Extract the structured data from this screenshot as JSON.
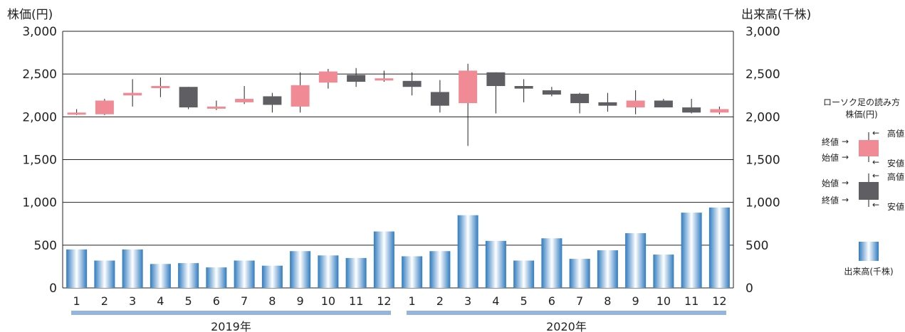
{
  "chart_data": {
    "type": "candlestick+bar",
    "left_axis_title": "株価(円)",
    "right_axis_title": "出来高(千株)",
    "y_ticks": [
      "0",
      "500",
      "1,000",
      "1,500",
      "2,000",
      "2,500",
      "3,000"
    ],
    "y_tick_values": [
      0,
      500,
      1000,
      1500,
      2000,
      2500,
      3000
    ],
    "ylim": [
      0,
      3000
    ],
    "grid": true,
    "categories": [
      "1",
      "2",
      "3",
      "4",
      "5",
      "6",
      "7",
      "8",
      "9",
      "10",
      "11",
      "12",
      "1",
      "2",
      "3",
      "4",
      "5",
      "6",
      "7",
      "8",
      "9",
      "10",
      "11",
      "12"
    ],
    "years": [
      {
        "label": "2019年",
        "start": 0,
        "end": 11
      },
      {
        "label": "2020年",
        "start": 12,
        "end": 23
      }
    ],
    "candles": [
      {
        "open": 2030,
        "high": 2090,
        "low": 2020,
        "close": 2050
      },
      {
        "open": 2030,
        "high": 2210,
        "low": 2020,
        "close": 2190
      },
      {
        "open": 2250,
        "high": 2440,
        "low": 2120,
        "close": 2280
      },
      {
        "open": 2350,
        "high": 2460,
        "low": 2230,
        "close": 2360
      },
      {
        "open": 2350,
        "high": 2350,
        "low": 2090,
        "close": 2110
      },
      {
        "open": 2100,
        "high": 2190,
        "low": 2080,
        "close": 2120
      },
      {
        "open": 2170,
        "high": 2360,
        "low": 2150,
        "close": 2210
      },
      {
        "open": 2240,
        "high": 2280,
        "low": 2050,
        "close": 2140
      },
      {
        "open": 2120,
        "high": 2520,
        "low": 2050,
        "close": 2370
      },
      {
        "open": 2400,
        "high": 2560,
        "low": 2330,
        "close": 2530
      },
      {
        "open": 2490,
        "high": 2570,
        "low": 2350,
        "close": 2410
      },
      {
        "open": 2430,
        "high": 2540,
        "low": 2410,
        "close": 2450
      },
      {
        "open": 2420,
        "high": 2520,
        "low": 2250,
        "close": 2350
      },
      {
        "open": 2290,
        "high": 2430,
        "low": 2050,
        "close": 2130
      },
      {
        "open": 2160,
        "high": 2620,
        "low": 1660,
        "close": 2540
      },
      {
        "open": 2520,
        "high": 2520,
        "low": 2040,
        "close": 2360
      },
      {
        "open": 2360,
        "high": 2440,
        "low": 2170,
        "close": 2330
      },
      {
        "open": 2310,
        "high": 2350,
        "low": 2240,
        "close": 2260
      },
      {
        "open": 2270,
        "high": 2280,
        "low": 2040,
        "close": 2160
      },
      {
        "open": 2170,
        "high": 2280,
        "low": 2060,
        "close": 2130
      },
      {
        "open": 2110,
        "high": 2310,
        "low": 2030,
        "close": 2190
      },
      {
        "open": 2190,
        "high": 2210,
        "low": 2110,
        "close": 2110
      },
      {
        "open": 2110,
        "high": 2210,
        "low": 2040,
        "close": 2050
      },
      {
        "open": 2050,
        "high": 2120,
        "low": 2030,
        "close": 2090
      }
    ],
    "volume": [
      450,
      320,
      450,
      280,
      290,
      240,
      320,
      260,
      430,
      380,
      350,
      660,
      370,
      430,
      850,
      550,
      320,
      580,
      340,
      440,
      640,
      390,
      880,
      940
    ],
    "colors": {
      "up": "#f08a94",
      "down": "#5f5f63",
      "volume_edge": "#2f7bc0",
      "volume_mid": "#ffffff",
      "year_bar": "#94b6de",
      "grid": "#222222"
    }
  },
  "legend": {
    "title": "ローソク足の読み方",
    "subtitle": "株価(円)",
    "up_labels": {
      "close": "終値",
      "open": "始値",
      "high": "高値",
      "low": "安値"
    },
    "down_labels": {
      "open": "始値",
      "close": "終値",
      "high": "高値",
      "low": "安値"
    },
    "volume_label": "出来高(千株)"
  }
}
